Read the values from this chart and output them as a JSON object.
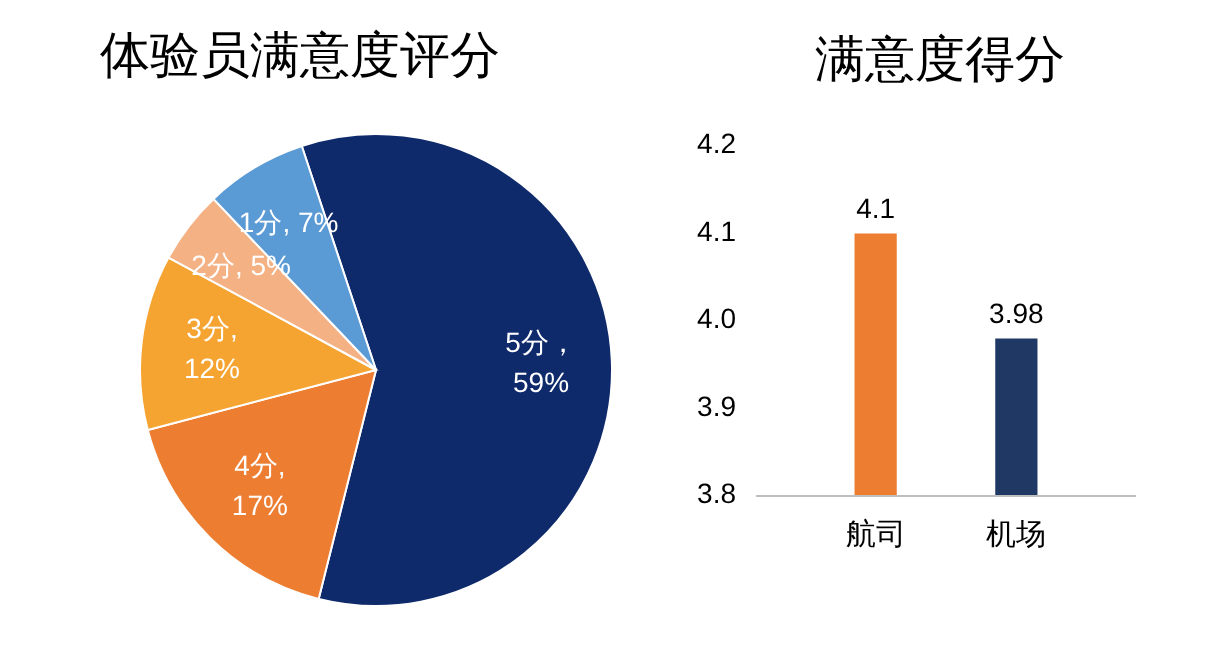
{
  "chart_data": [
    {
      "type": "pie",
      "title": "体验员满意度评分",
      "categories": [
        "5分",
        "4分",
        "3分",
        "2分",
        "1分"
      ],
      "values": [
        59,
        17,
        12,
        5,
        7
      ],
      "colors": [
        "#0e2a6b",
        "#ed7d31",
        "#f5a431",
        "#f4b183",
        "#5b9bd5"
      ],
      "value_labels": [
        "，\n59%",
        ",\n17%",
        ",\n12%",
        ", 5%",
        ", 7%"
      ]
    },
    {
      "type": "bar",
      "title": "满意度得分",
      "categories": [
        "航司",
        "机场"
      ],
      "values": [
        4.1,
        3.98
      ],
      "colors": [
        "#ed7d31",
        "#203864"
      ],
      "ylim": [
        3.8,
        4.2
      ],
      "yticks": [
        3.8,
        3.9,
        {
          "value": 4.0,
          "label": "4.0"
        },
        4.1,
        4.2
      ],
      "data_labels": true
    }
  ]
}
